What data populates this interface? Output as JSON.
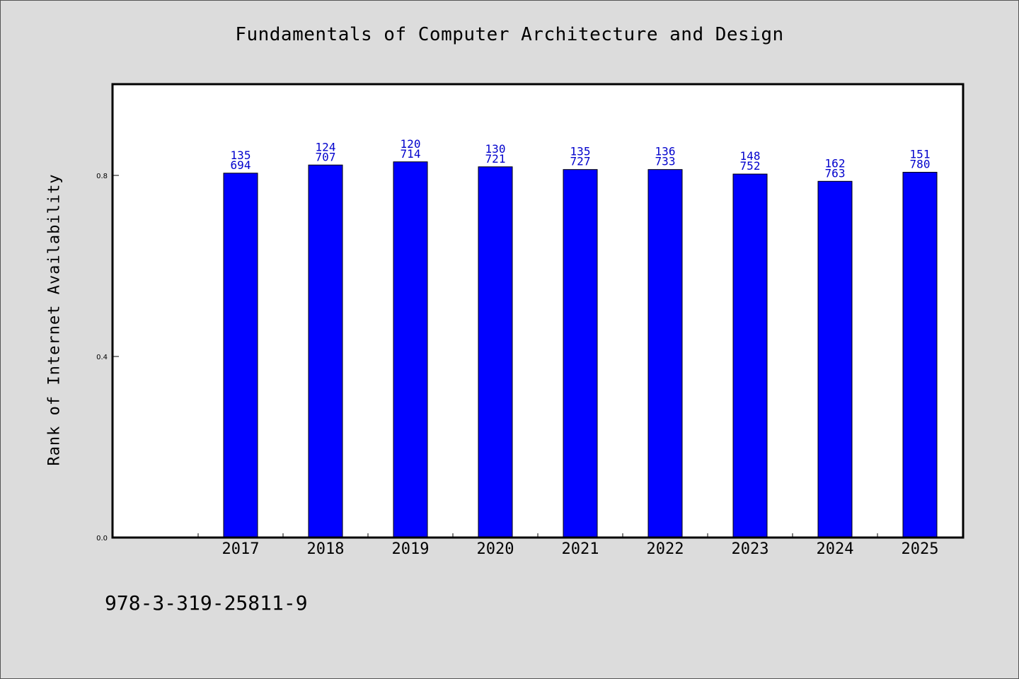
{
  "title": "Fundamentals of Computer Architecture and Design",
  "ylabel": "Rank of Internet Availability",
  "isbn": "978-3-319-25811-9",
  "colors": {
    "bar": "#0000ff",
    "label": "#0000cc",
    "background": "#dcdcdc",
    "plot": "#ffffff"
  },
  "chart_data": {
    "type": "bar",
    "categories": [
      "2017",
      "2018",
      "2019",
      "2020",
      "2021",
      "2022",
      "2023",
      "2024",
      "2025"
    ],
    "values": [
      0.805,
      0.823,
      0.83,
      0.819,
      0.813,
      0.813,
      0.803,
      0.787,
      0.807
    ],
    "bar_labels": [
      [
        "135",
        "694"
      ],
      [
        "124",
        "707"
      ],
      [
        "120",
        "714"
      ],
      [
        "130",
        "721"
      ],
      [
        "135",
        "727"
      ],
      [
        "136",
        "733"
      ],
      [
        "148",
        "752"
      ],
      [
        "162",
        "763"
      ],
      [
        "151",
        "780"
      ]
    ],
    "yticks": [
      "0.0",
      "0.4",
      "0.8"
    ],
    "ylim": [
      0,
      1.0
    ],
    "xlabel": "",
    "ylabel": "Rank of Internet Availability",
    "grid": false,
    "legend": "none"
  }
}
